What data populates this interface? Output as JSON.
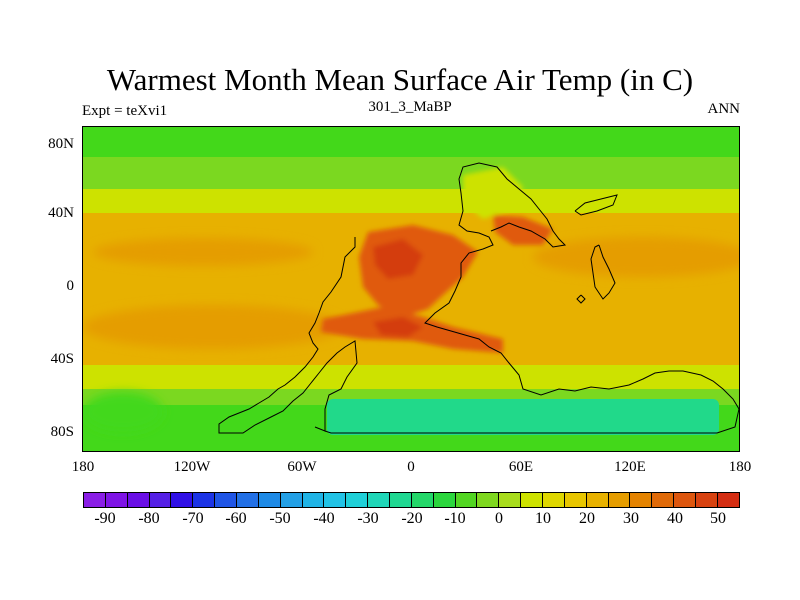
{
  "title": "Warmest Month Mean Surface Air Temp (in C)",
  "subtitle_left": "Expt = teXvi1",
  "subtitle_center": "301_3_MaBP",
  "subtitle_right": "ANN",
  "map": {
    "lat_labels": [
      "80N",
      "40N",
      "0",
      "40S",
      "80S"
    ],
    "lon_labels": [
      "180",
      "120W",
      "60W",
      "0",
      "60E",
      "120E",
      "180"
    ],
    "field_colors": {
      "ocean_polar": "#43d81a",
      "ocean_midlat": "#7bd820",
      "ocean_subtropic": "#cde200",
      "ocean_tropic": "#e7b100",
      "warm_band": "#e59d00",
      "land_hot": "#e05a0b",
      "land_hotter": "#d43e10",
      "ice_cap": "#21d98a",
      "coastline": "#000000"
    }
  },
  "colorbar": {
    "labels": [
      "-90",
      "-80",
      "-70",
      "-60",
      "-50",
      "-40",
      "-30",
      "-20",
      "-10",
      "0",
      "10",
      "20",
      "30",
      "40",
      "50"
    ],
    "colors": [
      "#8a1ee6",
      "#7f14e6",
      "#6a0fe6",
      "#5520e6",
      "#3010e6",
      "#1c34e6",
      "#1f55e6",
      "#2270e6",
      "#1e8ae6",
      "#23a0e6",
      "#20b4e6",
      "#22c3e6",
      "#1fd0d8",
      "#1fd6b8",
      "#20d892",
      "#24d86a",
      "#2bd63d",
      "#52d622",
      "#7fd81f",
      "#a8dc1c",
      "#cde200",
      "#dfd700",
      "#e8c600",
      "#e8b200",
      "#e59d00",
      "#e48300",
      "#e06a08",
      "#dd560e",
      "#d84210",
      "#d42d12"
    ]
  }
}
